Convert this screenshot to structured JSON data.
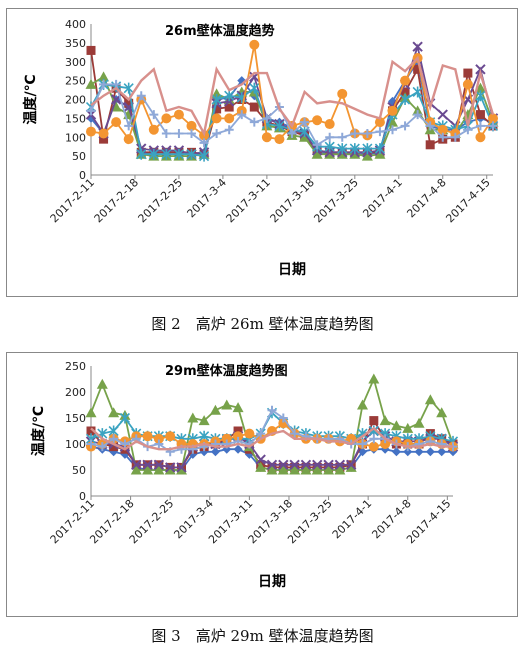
{
  "figures": [
    {
      "caption": "图 2　高炉 26m 壁体温度趋势图"
    },
    {
      "caption": "图 3　高炉 29m 壁体温度趋势图"
    }
  ],
  "colors": {
    "s1": "#4472c4",
    "s2": "#9b3b38",
    "s3": "#77a24a",
    "s4": "#6a4a91",
    "s5": "#3aa3c1",
    "s6": "#f39531",
    "s7": "#8ea8d8",
    "s8": "#d8908c"
  },
  "chart_data": [
    {
      "type": "line",
      "title": "26m壁体温度趋势",
      "xlabel": "日期",
      "ylabel": "温度/℃",
      "ylim": [
        0,
        400
      ],
      "yticks": [
        0,
        50,
        100,
        150,
        200,
        250,
        300,
        350,
        400
      ],
      "xticks": [
        "2017-2-11",
        "2017-2-18",
        "2017-2-25",
        "2017-3-4",
        "2017-3-11",
        "2017-3-18",
        "2017-3-25",
        "2017-4-1",
        "2017-4-8",
        "2017-4-15"
      ],
      "x": [
        "2017-2-11",
        "2017-2-13",
        "2017-2-15",
        "2017-2-17",
        "2017-2-19",
        "2017-2-21",
        "2017-2-23",
        "2017-2-25",
        "2017-2-27",
        "2017-3-1",
        "2017-3-3",
        "2017-3-5",
        "2017-3-7",
        "2017-3-9",
        "2017-3-11",
        "2017-3-13",
        "2017-3-15",
        "2017-3-17",
        "2017-3-19",
        "2017-3-21",
        "2017-3-23",
        "2017-3-25",
        "2017-3-27",
        "2017-3-29",
        "2017-3-31",
        "2017-4-2",
        "2017-4-4",
        "2017-4-6",
        "2017-4-8",
        "2017-4-10",
        "2017-4-12",
        "2017-4-14",
        "2017-4-16"
      ],
      "series": [
        {
          "values": [
            150,
            110,
            200,
            180,
            60,
            55,
            55,
            55,
            55,
            60,
            200,
            205,
            250,
            210,
            150,
            140,
            125,
            110,
            60,
            55,
            55,
            55,
            55,
            60,
            195,
            250,
            300,
            130,
            120,
            120,
            140,
            150,
            140
          ]
        },
        {
          "values": [
            330,
            95,
            230,
            190,
            60,
            60,
            60,
            60,
            60,
            55,
            175,
            180,
            200,
            180,
            140,
            130,
            115,
            105,
            65,
            60,
            60,
            60,
            60,
            60,
            170,
            220,
            280,
            80,
            95,
            100,
            270,
            160,
            130
          ]
        },
        {
          "values": [
            240,
            260,
            180,
            160,
            55,
            50,
            50,
            50,
            50,
            55,
            215,
            200,
            220,
            220,
            130,
            125,
            105,
            100,
            55,
            55,
            55,
            55,
            50,
            55,
            140,
            205,
            170,
            120,
            120,
            110,
            160,
            230,
            140
          ]
        },
        {
          "values": [
            160,
            110,
            200,
            180,
            70,
            65,
            65,
            65,
            55,
            60,
            190,
            195,
            210,
            260,
            150,
            135,
            120,
            110,
            65,
            60,
            60,
            60,
            60,
            65,
            180,
            240,
            340,
            190,
            160,
            130,
            200,
            280,
            150
          ]
        },
        {
          "values": [
            180,
            240,
            235,
            230,
            55,
            55,
            55,
            55,
            55,
            50,
            200,
            210,
            205,
            230,
            135,
            130,
            120,
            115,
            75,
            75,
            70,
            70,
            70,
            70,
            160,
            200,
            220,
            140,
            130,
            120,
            130,
            210,
            130
          ]
        },
        {
          "values": [
            115,
            110,
            140,
            95,
            200,
            120,
            150,
            160,
            130,
            105,
            150,
            150,
            170,
            345,
            100,
            95,
            130,
            140,
            145,
            135,
            215,
            110,
            105,
            140,
            170,
            250,
            310,
            140,
            120,
            110,
            240,
            100,
            150
          ]
        },
        {
          "values": [
            170,
            240,
            240,
            130,
            210,
            160,
            110,
            110,
            110,
            85,
            110,
            120,
            160,
            140,
            150,
            180,
            110,
            140,
            80,
            100,
            100,
            110,
            110,
            115,
            120,
            130,
            160,
            130,
            100,
            100,
            120,
            130,
            130
          ]
        },
        {
          "values": [
            185,
            210,
            230,
            200,
            250,
            280,
            170,
            180,
            170,
            110,
            280,
            225,
            240,
            270,
            270,
            175,
            130,
            220,
            190,
            195,
            190,
            175,
            160,
            150,
            300,
            275,
            310,
            180,
            290,
            280,
            130,
            270,
            160
          ]
        }
      ]
    },
    {
      "type": "line",
      "title": "29m壁体温度趋势图",
      "xlabel": "日期",
      "ylabel": "温度/℃",
      "ylim": [
        0,
        250
      ],
      "yticks": [
        0,
        50,
        100,
        150,
        200,
        250
      ],
      "xticks": [
        "2017-2-11",
        "2017-2-18",
        "2017-2-25",
        "2017-3-4",
        "2017-3-11",
        "2017-3-18",
        "2017-3-25",
        "2017-4-1",
        "2017-4-8",
        "2017-4-15"
      ],
      "x": [
        "2017-2-11",
        "2017-2-13",
        "2017-2-15",
        "2017-2-17",
        "2017-2-19",
        "2017-2-21",
        "2017-2-23",
        "2017-2-25",
        "2017-2-27",
        "2017-3-1",
        "2017-3-3",
        "2017-3-5",
        "2017-3-7",
        "2017-3-9",
        "2017-3-11",
        "2017-3-13",
        "2017-3-15",
        "2017-3-17",
        "2017-3-19",
        "2017-3-21",
        "2017-3-23",
        "2017-3-25",
        "2017-3-27",
        "2017-3-29",
        "2017-3-31",
        "2017-4-2",
        "2017-4-4",
        "2017-4-6",
        "2017-4-8",
        "2017-4-10",
        "2017-4-12",
        "2017-4-14",
        "2017-4-16"
      ],
      "series": [
        {
          "values": [
            95,
            90,
            85,
            80,
            55,
            50,
            50,
            50,
            50,
            80,
            85,
            85,
            90,
            90,
            80,
            55,
            50,
            50,
            50,
            50,
            50,
            50,
            50,
            55,
            85,
            90,
            90,
            85,
            85,
            85,
            85,
            85,
            85
          ]
        },
        {
          "values": [
            125,
            100,
            95,
            90,
            60,
            60,
            60,
            55,
            55,
            90,
            95,
            100,
            110,
            125,
            90,
            60,
            55,
            55,
            55,
            55,
            55,
            55,
            55,
            60,
            100,
            145,
            110,
            100,
            100,
            100,
            120,
            110,
            100
          ]
        },
        {
          "values": [
            160,
            215,
            160,
            155,
            50,
            50,
            50,
            50,
            50,
            150,
            145,
            165,
            175,
            170,
            95,
            55,
            50,
            50,
            50,
            50,
            50,
            50,
            50,
            55,
            175,
            225,
            145,
            135,
            130,
            140,
            185,
            160,
            100
          ]
        },
        {
          "values": [
            105,
            100,
            100,
            95,
            60,
            60,
            60,
            55,
            55,
            95,
            100,
            100,
            105,
            115,
            100,
            70,
            60,
            60,
            60,
            60,
            60,
            60,
            60,
            60,
            105,
            125,
            115,
            105,
            105,
            105,
            110,
            110,
            95
          ]
        },
        {
          "values": [
            110,
            120,
            125,
            150,
            120,
            115,
            115,
            115,
            110,
            110,
            115,
            110,
            110,
            110,
            110,
            120,
            160,
            140,
            125,
            120,
            115,
            115,
            115,
            110,
            120,
            125,
            120,
            115,
            110,
            110,
            115,
            110,
            105
          ]
        },
        {
          "values": [
            95,
            100,
            110,
            105,
            115,
            115,
            110,
            115,
            100,
            100,
            100,
            105,
            110,
            115,
            120,
            110,
            125,
            140,
            120,
            110,
            110,
            110,
            105,
            110,
            100,
            95,
            100,
            105,
            100,
            100,
            105,
            100,
            95
          ]
        },
        {
          "values": [
            100,
            95,
            110,
            100,
            110,
            95,
            100,
            85,
            90,
            90,
            95,
            100,
            100,
            105,
            100,
            120,
            165,
            150,
            120,
            115,
            110,
            110,
            110,
            100,
            100,
            110,
            110,
            100,
            95,
            100,
            105,
            100,
            95
          ]
        },
        {
          "values": [
            130,
            110,
            100,
            90,
            105,
            95,
            90,
            90,
            95,
            95,
            100,
            95,
            95,
            100,
            95,
            110,
            120,
            125,
            110,
            110,
            110,
            105,
            105,
            100,
            115,
            130,
            110,
            100,
            95,
            95,
            100,
            95,
            95
          ]
        }
      ]
    }
  ]
}
